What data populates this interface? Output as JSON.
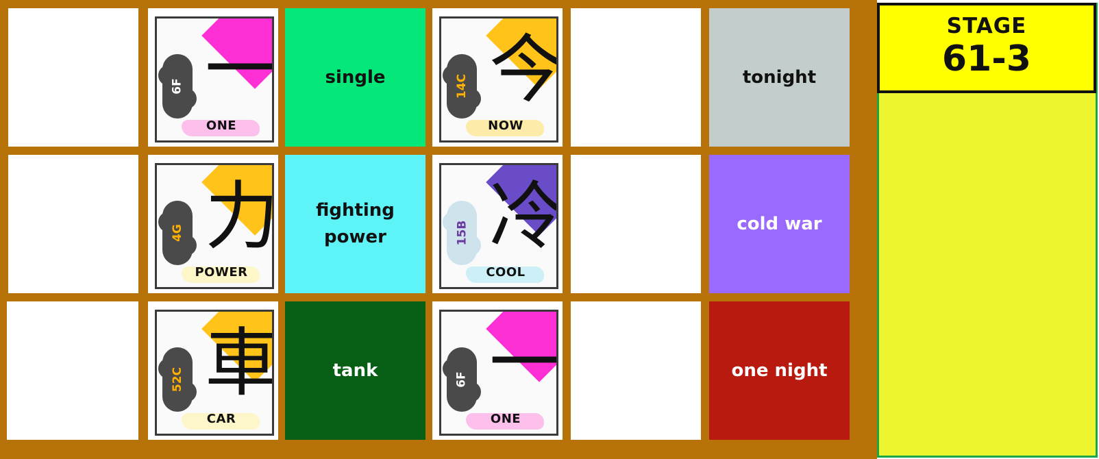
{
  "stage": {
    "label": "STAGE",
    "number": "61-3"
  },
  "rows": [
    {
      "card1": {
        "kanji": "一",
        "code": "6F",
        "word": "ONE",
        "cloud_color": "#4a4a4a",
        "code_color": "#ffffff",
        "corner_color": "#ff2fd6",
        "word_hl": "#ff8fe0"
      },
      "meaning1": {
        "text": "single",
        "bg": "#03e879",
        "fg": "#111111"
      },
      "card2": {
        "kanji": "今",
        "code": "14C",
        "word": "NOW",
        "cloud_color": "#4a4a4a",
        "code_color": "#ffb000",
        "corner_color": "#ffc31a",
        "word_hl": "#ffe066"
      },
      "meaning2": {
        "text": "tonight",
        "bg": "#c3cdcc",
        "fg": "#111111"
      }
    },
    {
      "card1": {
        "kanji": "力",
        "code": "4G",
        "word": "POWER",
        "cloud_color": "#4a4a4a",
        "code_color": "#ffb000",
        "corner_color": "#ffc31a",
        "word_hl": "#fff2a0"
      },
      "meaning1": {
        "text": "fighting power",
        "bg": "#5ef3f7",
        "fg": "#111111"
      },
      "card2": {
        "kanji": "冷",
        "code": "15B",
        "word": "COOL",
        "cloud_color": "#cfe3ec",
        "code_color": "#6a3aa0",
        "corner_color": "#6a4bc8",
        "word_hl": "#a8e8f4"
      },
      "meaning2": {
        "text": "cold war",
        "bg": "#9a6aff",
        "fg": "#ffffff"
      }
    },
    {
      "card1": {
        "kanji": "車",
        "code": "52C",
        "word": "CAR",
        "cloud_color": "#4a4a4a",
        "code_color": "#ffb000",
        "corner_color": "#ffc31a",
        "word_hl": "#fff2a0"
      },
      "meaning1": {
        "text": "tank",
        "bg": "#065f14",
        "fg": "#ffffff"
      },
      "card2": {
        "kanji": "一",
        "code": "6F",
        "word": "ONE",
        "cloud_color": "#4a4a4a",
        "code_color": "#ffffff",
        "corner_color": "#ff2fd6",
        "word_hl": "#ff8fe0"
      },
      "meaning2": {
        "text": "one night",
        "bg": "#b81a10",
        "fg": "#ffffff"
      }
    }
  ]
}
